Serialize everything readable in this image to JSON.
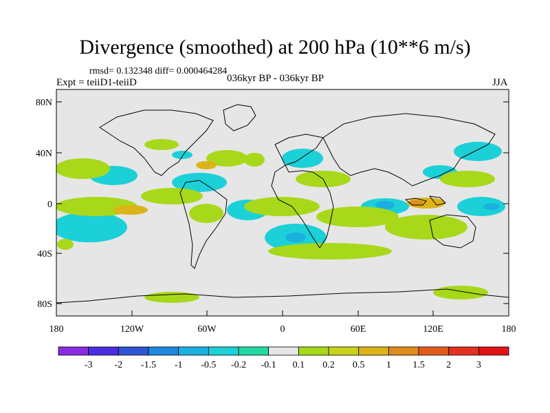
{
  "header": {
    "title": "Divergence (smoothed) at 200 hPa (10**6 m/s)",
    "stats": "rmsd= 0.132348 diff= 0.000464284",
    "expt": "Expt = teiiD1-teiiD",
    "period": "036kyr BP - 036kyr BP",
    "season": "JJA"
  },
  "map": {
    "ocean_color": "#e6e6e6",
    "lat_labels": [
      "80N",
      "40N",
      "0",
      "40S",
      "80S"
    ],
    "lon_labels": [
      "180",
      "120W",
      "60W",
      "0",
      "60E",
      "120E",
      "180"
    ]
  },
  "colorbar": {
    "labels": [
      "-3",
      "-2",
      "-1.5",
      "-1",
      "-0.5",
      "-0.2",
      "-0.1",
      "0.1",
      "0.2",
      "0.5",
      "1",
      "1.5",
      "2",
      "3"
    ],
    "colors": [
      "#8a2be2",
      "#4b2ee0",
      "#2f55d4",
      "#1e88df",
      "#1ab0e0",
      "#1cd0d8",
      "#22d9a2",
      "#e6e6e6",
      "#a8d81a",
      "#c8d21a",
      "#dcb41a",
      "#e08c1e",
      "#e05a1e",
      "#e0321e",
      "#e01414"
    ]
  }
}
